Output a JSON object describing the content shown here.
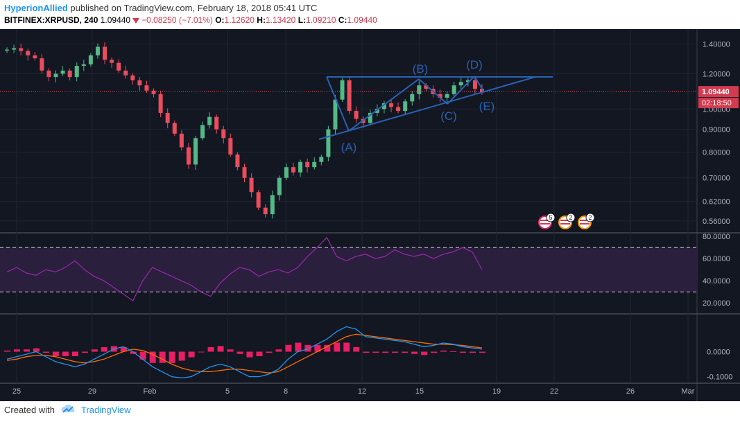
{
  "header": {
    "author": "HyperionAllied",
    "published_text": "published on TradingView.com, February 18, 2018 05:41 UTC",
    "symbol": "BITFINEX:XRPUSD, 240",
    "last": "1.09440",
    "change": "−0.08250 (−7.01%)",
    "open_label": "O:",
    "open": "1.12620",
    "high_label": "H:",
    "high": "1.13420",
    "low_label": "L:",
    "low": "1.09210",
    "close_label": "C:",
    "close": "1.09440"
  },
  "price_axis": {
    "ticks": [
      "1.40000",
      "1.20000",
      "1.00000",
      "0.90000",
      "0.80000",
      "0.70000",
      "0.62000",
      "0.56000"
    ],
    "current_price": "1.09440",
    "countdown": "02:18:50"
  },
  "rsi_axis": {
    "ticks": [
      "80.0000",
      "60.0000",
      "40.0000",
      "20.0000"
    ]
  },
  "macd_axis": {
    "ticks": [
      "0.0000",
      "-0.1000"
    ]
  },
  "time_axis": {
    "labels": [
      "25",
      "29",
      "Feb",
      "5",
      "8",
      "12",
      "15",
      "19",
      "22",
      "26",
      "Mar"
    ]
  },
  "wave_labels": [
    "(A)",
    "(B)",
    "(C)",
    "(D)",
    "(E)"
  ],
  "event_badges": [
    "5",
    "2",
    "2"
  ],
  "footer": {
    "created_with": "Created with",
    "brand": "TradingView"
  },
  "colors": {
    "background": "#131722",
    "up": "#53b987",
    "down": "#eb4d5c",
    "drawing": "#2962b3",
    "rsi": "#9c27b0",
    "macd_line": "#2196f3",
    "signal_line": "#ff6d00",
    "histogram": "#e91e63",
    "accent": "#2196f3"
  },
  "chart_data": {
    "type": "candlestick",
    "symbol": "BITFINEX:XRPUSD",
    "interval": "240",
    "price_scale": "log",
    "y_range": [
      0.54,
      1.48
    ],
    "x_ticks": [
      "25",
      "29",
      "Feb",
      "5",
      "8",
      "12",
      "15",
      "19",
      "22",
      "26",
      "Mar"
    ],
    "approx_closes": [
      1.36,
      1.37,
      1.35,
      1.32,
      1.3,
      1.22,
      1.18,
      1.2,
      1.22,
      1.18,
      1.25,
      1.26,
      1.32,
      1.38,
      1.29,
      1.27,
      1.22,
      1.19,
      1.16,
      1.13,
      1.1,
      1.08,
      0.98,
      0.93,
      0.88,
      0.82,
      0.75,
      0.86,
      0.92,
      0.96,
      0.9,
      0.86,
      0.79,
      0.74,
      0.7,
      0.65,
      0.6,
      0.58,
      0.64,
      0.7,
      0.74,
      0.72,
      0.76,
      0.74,
      0.76,
      0.78,
      0.9,
      1.05,
      1.16,
      0.99,
      0.95,
      0.93,
      0.98,
      1.0,
      1.03,
      1.01,
      0.99,
      1.04,
      1.08,
      1.13,
      1.11,
      1.08,
      1.06,
      1.08,
      1.13,
      1.15,
      1.16,
      1.11,
      1.09
    ],
    "rsi": [
      48,
      52,
      47,
      45,
      50,
      48,
      52,
      58,
      50,
      44,
      40,
      34,
      28,
      22,
      40,
      52,
      48,
      44,
      40,
      36,
      30,
      26,
      38,
      46,
      52,
      50,
      44,
      48,
      50,
      47,
      52,
      62,
      70,
      79,
      62,
      58,
      62,
      64,
      60,
      62,
      68,
      64,
      62,
      64,
      60,
      64,
      66,
      70,
      66,
      50
    ],
    "rsi_levels": [
      70,
      30
    ],
    "macd": [
      -0.03,
      -0.02,
      -0.01,
      0.0,
      -0.02,
      -0.04,
      -0.05,
      -0.06,
      -0.05,
      -0.03,
      -0.01,
      0.01,
      0.02,
      0.0,
      -0.03,
      -0.06,
      -0.08,
      -0.1,
      -0.105,
      -0.1,
      -0.08,
      -0.06,
      -0.05,
      -0.06,
      -0.08,
      -0.1,
      -0.1,
      -0.09,
      -0.07,
      -0.03,
      0.0,
      0.01,
      0.03,
      0.05,
      0.08,
      0.1,
      0.09,
      0.06,
      0.055,
      0.05,
      0.045,
      0.04,
      0.03,
      0.02,
      0.025,
      0.035,
      0.03,
      0.02,
      0.015,
      0.01
    ],
    "signal": [
      -0.035,
      -0.03,
      -0.02,
      -0.015,
      -0.015,
      -0.02,
      -0.03,
      -0.04,
      -0.045,
      -0.04,
      -0.03,
      -0.015,
      0.0,
      0.01,
      0.005,
      -0.01,
      -0.03,
      -0.05,
      -0.065,
      -0.075,
      -0.08,
      -0.08,
      -0.075,
      -0.07,
      -0.07,
      -0.075,
      -0.08,
      -0.085,
      -0.08,
      -0.06,
      -0.04,
      -0.02,
      0.0,
      0.02,
      0.04,
      0.06,
      0.07,
      0.065,
      0.06,
      0.055,
      0.05,
      0.045,
      0.04,
      0.035,
      0.03,
      0.03,
      0.028,
      0.025,
      0.02,
      0.015
    ],
    "elliott_labels": [
      "(A)",
      "(B)",
      "(C)",
      "(D)",
      "(E)"
    ]
  }
}
